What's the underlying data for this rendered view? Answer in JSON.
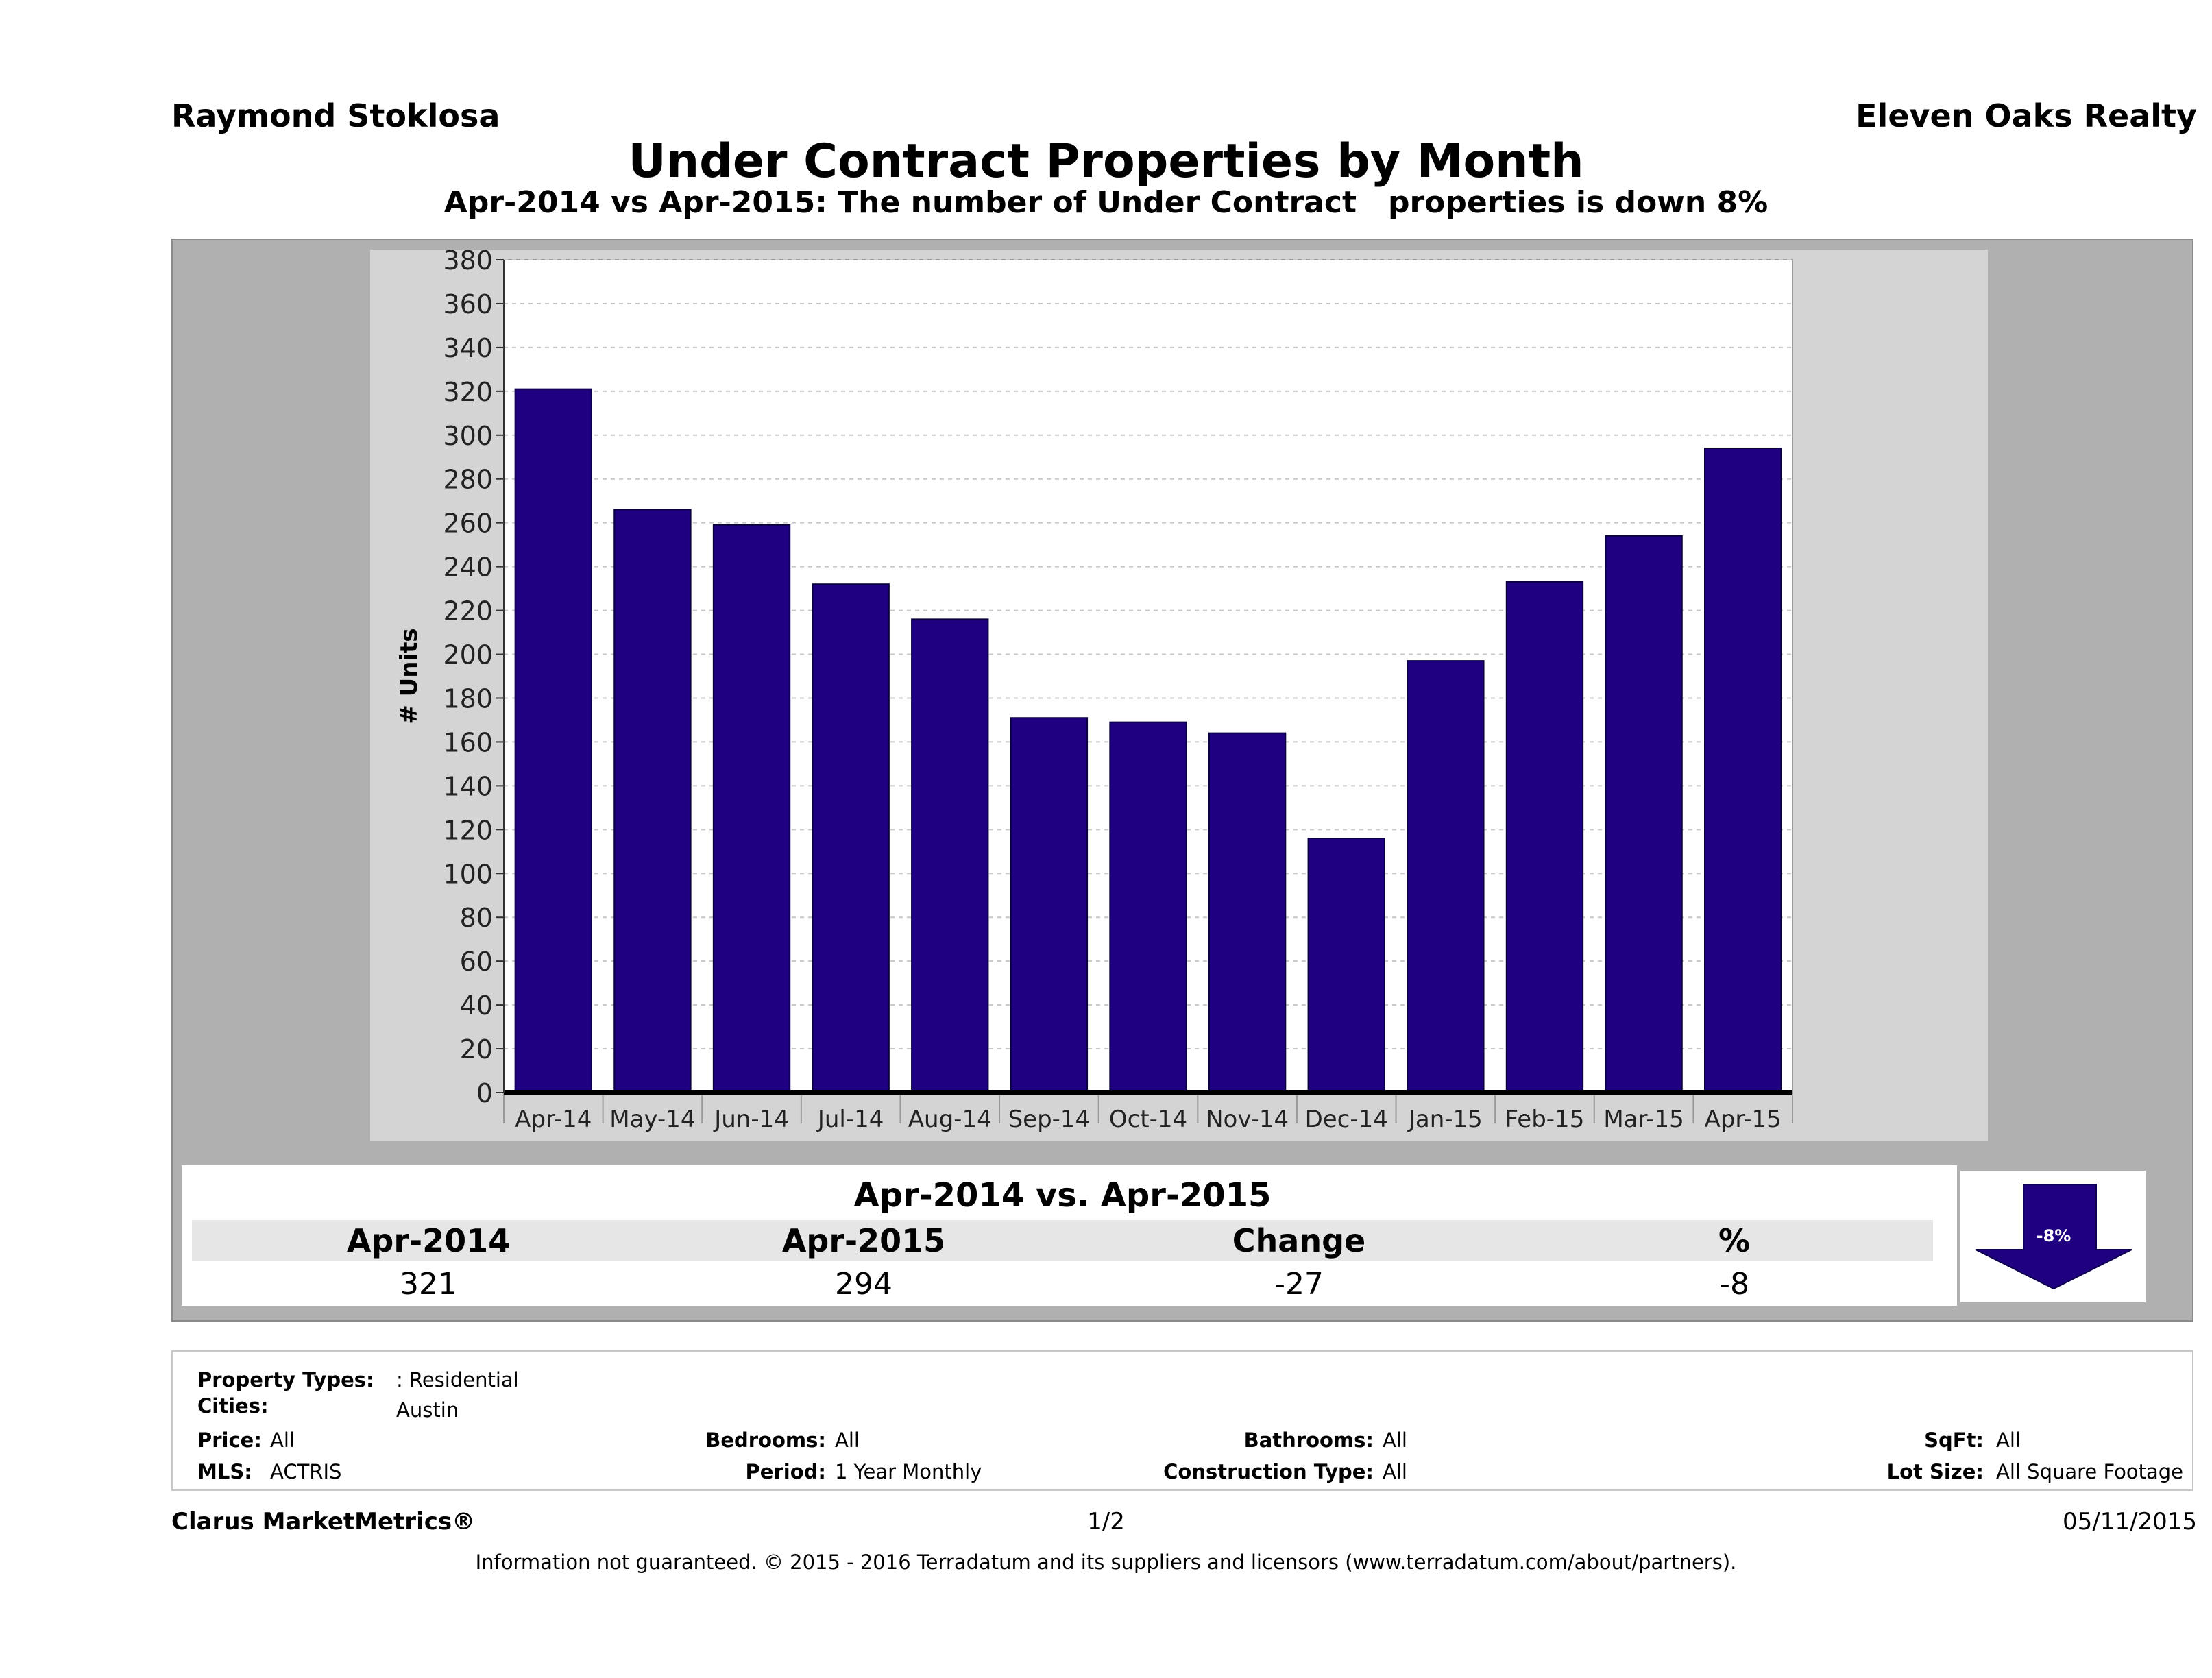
{
  "header": {
    "agent_name": "Raymond Stoklosa",
    "company_name": "Eleven Oaks Realty",
    "title": "Under Contract Properties by Month",
    "subtitle": "Apr-2014 vs Apr-2015: The number of Under Contract   properties is down 8%"
  },
  "colors": {
    "bar": "#1f0080",
    "outer_panel": "#b0b0b0",
    "chart_panel": "#d4d4d4",
    "plot_bg": "#ffffff",
    "summary_header": "#e6e6e6"
  },
  "chart_data": {
    "type": "bar",
    "categories": [
      "Apr-14",
      "May-14",
      "Jun-14",
      "Jul-14",
      "Aug-14",
      "Sep-14",
      "Oct-14",
      "Nov-14",
      "Dec-14",
      "Jan-15",
      "Feb-15",
      "Mar-15",
      "Apr-15"
    ],
    "values": [
      321,
      266,
      259,
      232,
      216,
      171,
      169,
      164,
      116,
      197,
      233,
      254,
      294
    ],
    "ylabel": "# Units",
    "ylim": [
      0,
      380
    ],
    "yticks": [
      0,
      20,
      40,
      60,
      80,
      100,
      120,
      140,
      160,
      180,
      200,
      220,
      240,
      260,
      280,
      300,
      320,
      340,
      360,
      380
    ],
    "grid": true,
    "grid_style": "dashed-horizontal"
  },
  "summary": {
    "title": "Apr-2014 vs. Apr-2015",
    "headers": [
      "Apr-2014",
      "Apr-2015",
      "Change",
      "%"
    ],
    "values": [
      "321",
      "294",
      "-27",
      "-8"
    ],
    "badge": "-8%",
    "badge_icon": "down-arrow-icon"
  },
  "filters": {
    "property_types_label": "Property Types:",
    "property_types_value": ": Residential",
    "cities_label": "Cities:",
    "cities_value": "Austin",
    "price_label": "Price:",
    "price_value": "All",
    "mls_label": "MLS:",
    "mls_value": "ACTRIS",
    "bedrooms_label": "Bedrooms:",
    "bedrooms_value": "All",
    "period_label": "Period:",
    "period_value": "1 Year Monthly",
    "bathrooms_label": "Bathrooms:",
    "bathrooms_value": "All",
    "construction_label": "Construction Type:",
    "construction_value": "All",
    "sqft_label": "SqFt:",
    "sqft_value": "All",
    "lot_size_label": "Lot Size:",
    "lot_size_value": "All Square Footage"
  },
  "footer": {
    "brand": "Clarus MarketMetrics®",
    "page": "1/2",
    "date": "05/11/2015",
    "disclaimer": "Information not guaranteed. © 2015 - 2016 Terradatum and its suppliers and licensors (www.terradatum.com/about/partners)."
  }
}
